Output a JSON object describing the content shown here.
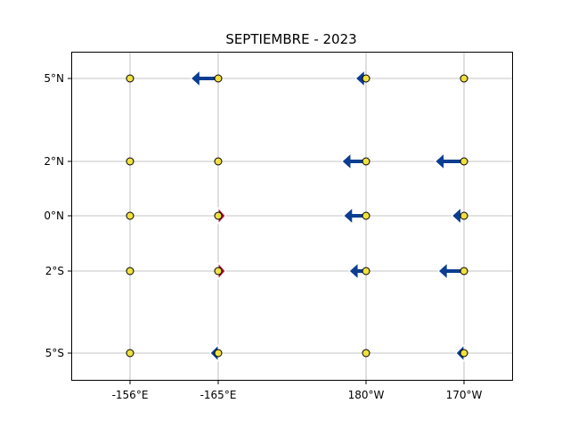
{
  "figure": {
    "title": "SEPTIEMBRE - 2023"
  },
  "map": {
    "x_ticks": [
      {
        "lon": -156,
        "label": "-156°E"
      },
      {
        "lon": -165,
        "label": "-165°E"
      },
      {
        "lon": 180,
        "label": "180°W"
      },
      {
        "lon": 170,
        "label": "170°W"
      }
    ],
    "y_ticks": [
      {
        "lat": 5,
        "label": "5°N"
      },
      {
        "lat": 2,
        "label": "2°N"
      },
      {
        "lat": 0,
        "label": "0°N"
      },
      {
        "lat": -2,
        "label": "2°S"
      },
      {
        "lat": -5,
        "label": "5°S"
      }
    ],
    "station_marker_color": "#f0e040",
    "colors": {
      "westward": "#0b3d91",
      "eastward": "#b0102a"
    },
    "stations": [
      {
        "lon": -156,
        "lat": 5,
        "u": 0
      },
      {
        "lon": -165,
        "lat": 5,
        "u": -3.4
      },
      {
        "lon": 180,
        "lat": 5,
        "u": -1.3
      },
      {
        "lon": 170,
        "lat": 5,
        "u": 0
      },
      {
        "lon": -156,
        "lat": 2,
        "u": 0
      },
      {
        "lon": -165,
        "lat": 2,
        "u": 0
      },
      {
        "lon": 180,
        "lat": 2,
        "u": -3.0
      },
      {
        "lon": 170,
        "lat": 2,
        "u": -3.6
      },
      {
        "lon": -156,
        "lat": 0,
        "u": 0
      },
      {
        "lon": -165,
        "lat": 0,
        "u": 0.9
      },
      {
        "lon": 180,
        "lat": 0,
        "u": -2.8
      },
      {
        "lon": 170,
        "lat": 0,
        "u": -1.5
      },
      {
        "lon": -156,
        "lat": -2,
        "u": 0
      },
      {
        "lon": -165,
        "lat": -2,
        "u": 0.9
      },
      {
        "lon": 180,
        "lat": -2,
        "u": -2.1
      },
      {
        "lon": 170,
        "lat": -2,
        "u": -3.2
      },
      {
        "lon": -156,
        "lat": -5,
        "u": 0
      },
      {
        "lon": -165,
        "lat": -5,
        "u": -1.0
      },
      {
        "lon": 180,
        "lat": -5,
        "u": 0
      },
      {
        "lon": 170,
        "lat": -5,
        "u": -1.0
      }
    ]
  }
}
